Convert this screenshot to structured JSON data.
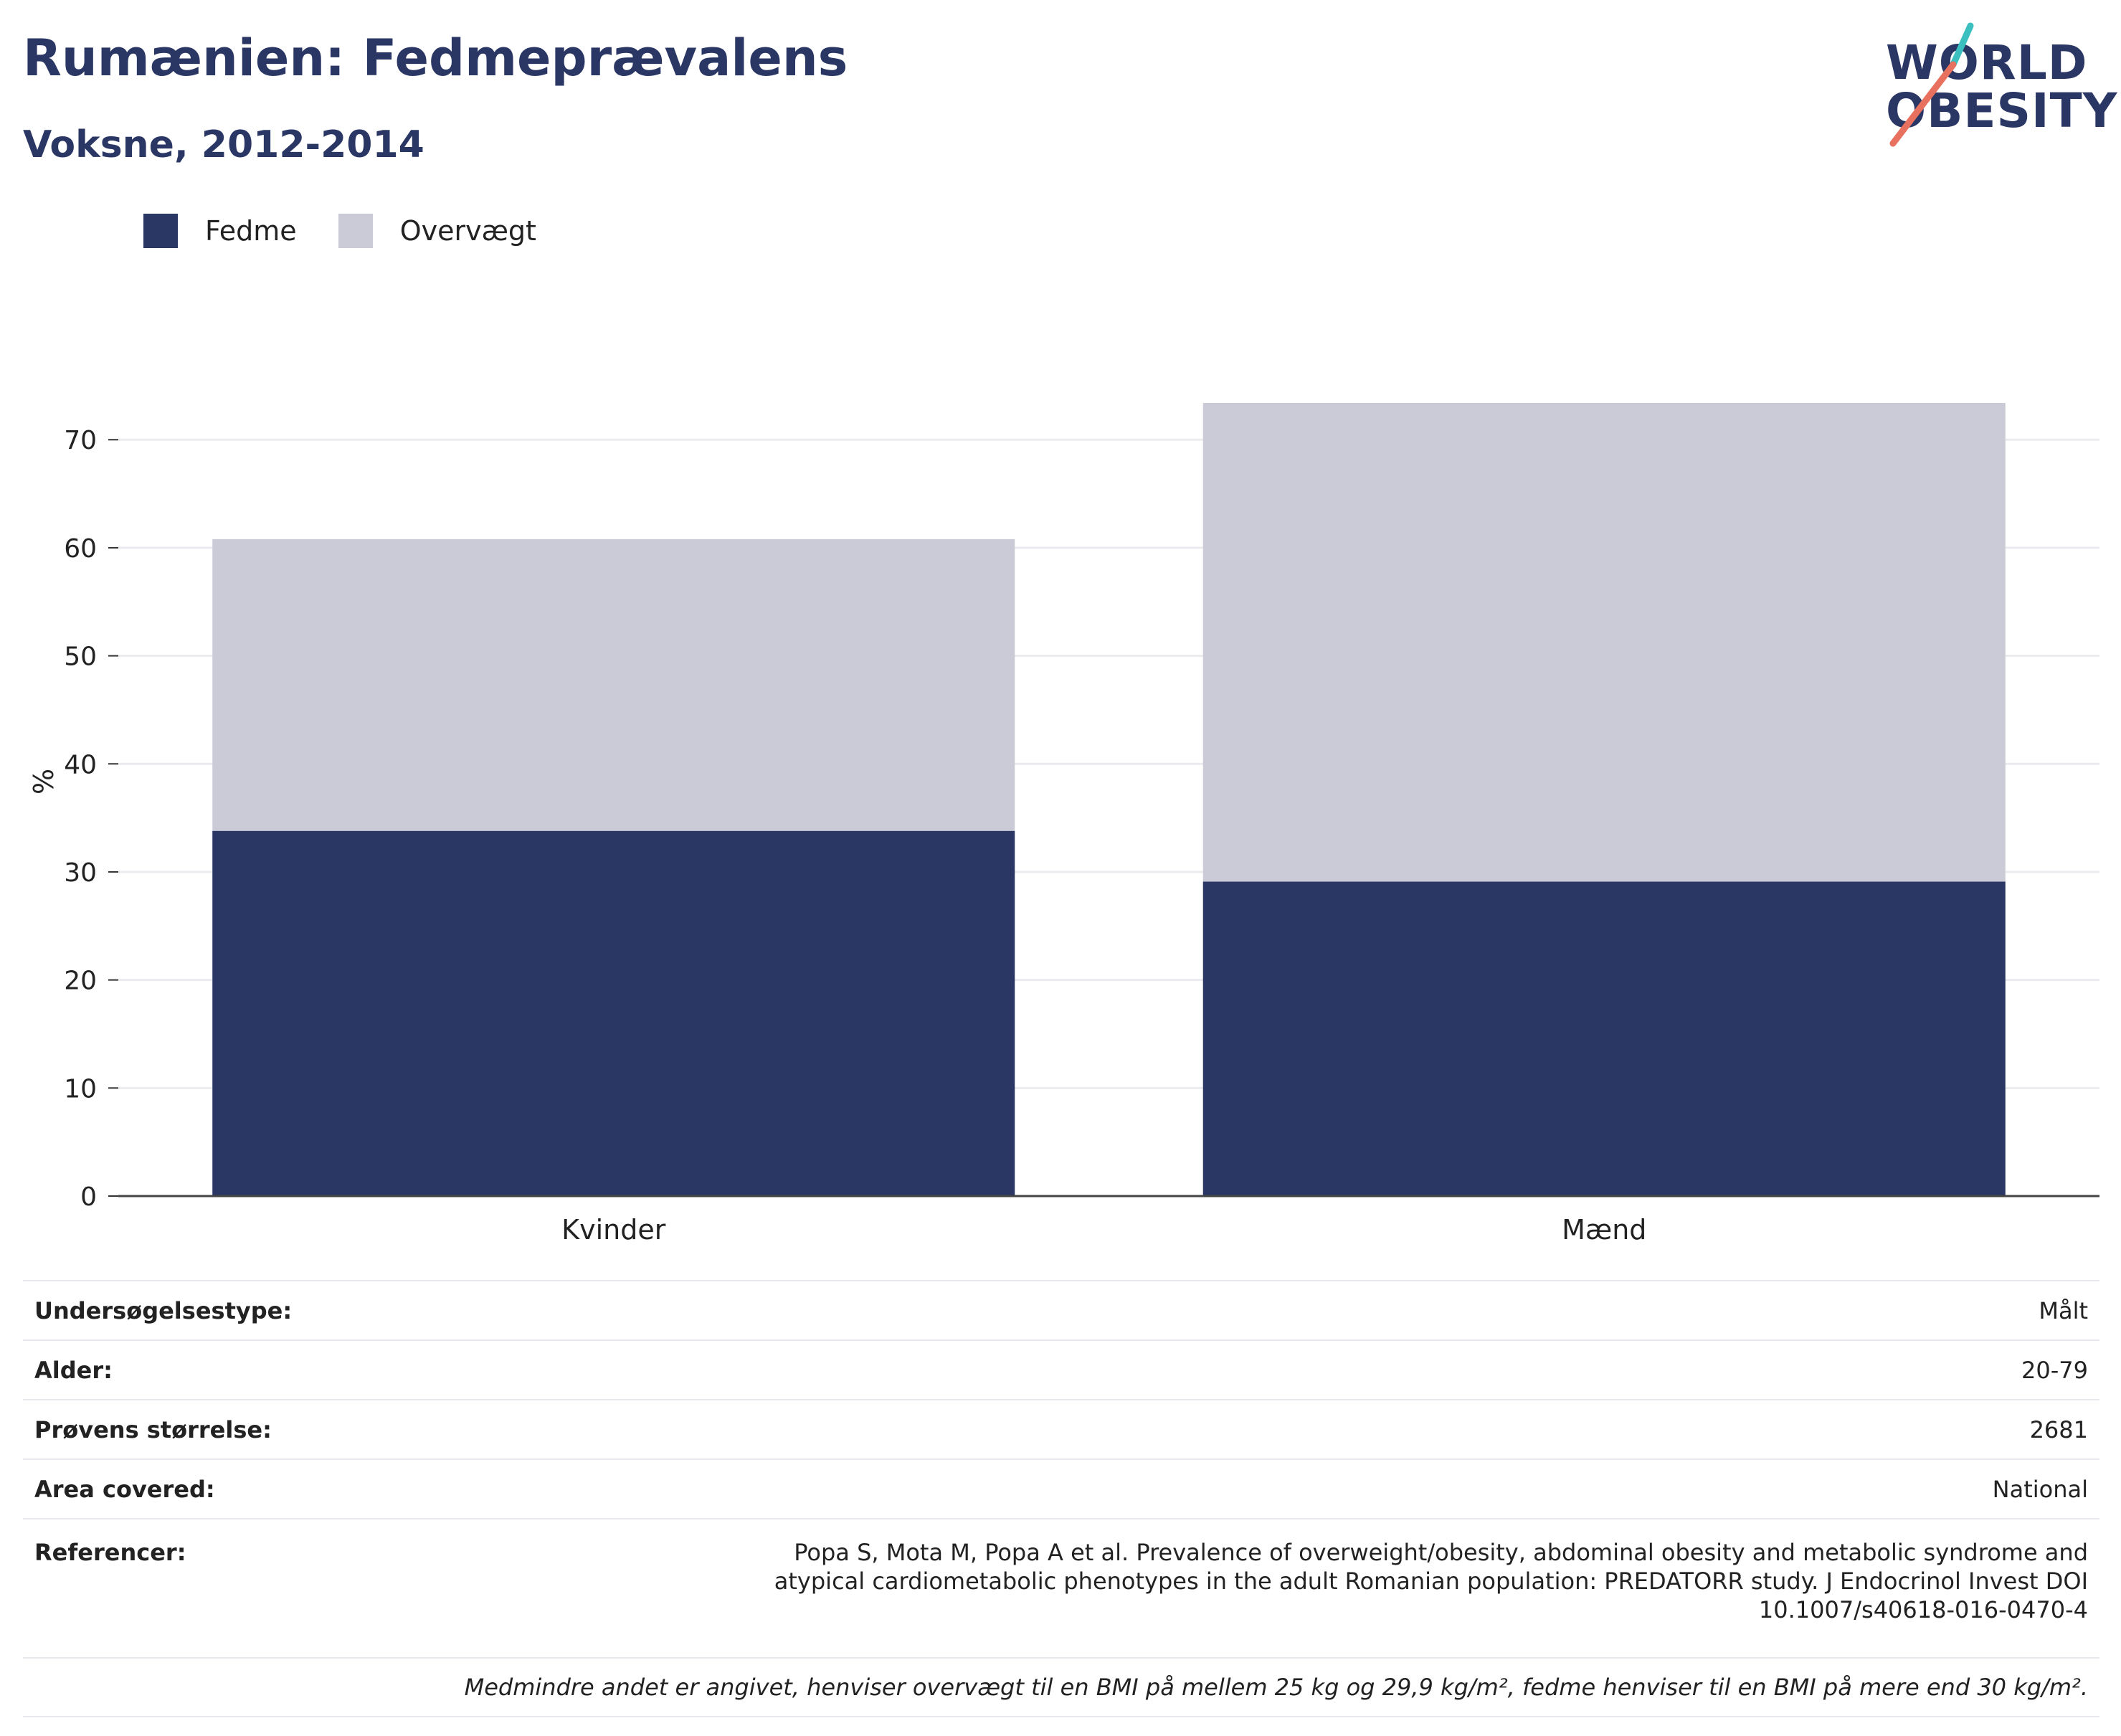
{
  "header": {
    "title": "Rumænien: Fedmeprævalens",
    "subtitle": "Voksne, 2012-2014"
  },
  "logo": {
    "line1": "WORLD",
    "line2": "OBESITY"
  },
  "colors": {
    "fedme": "#2a3663",
    "overvaegt": "#cacbd7",
    "text": "#2a3663",
    "logo_accent_teal": "#3bbfbf",
    "logo_accent_coral": "#e8705e"
  },
  "chart_data": {
    "type": "bar",
    "stacked": true,
    "categories": [
      "Kvinder",
      "Mænd"
    ],
    "series": [
      {
        "name": "Fedme",
        "values": [
          33.8,
          29.1
        ]
      },
      {
        "name": "Overvægt",
        "values": [
          27.0,
          44.3
        ]
      }
    ],
    "ylabel": "%",
    "xlabel": "",
    "ylim": [
      0,
      73.4
    ],
    "yticks": [
      0,
      10,
      20,
      30,
      40,
      50,
      60,
      70
    ],
    "grid": true,
    "legend": "top-left"
  },
  "meta": {
    "rows": [
      {
        "label": "Undersøgelsestype:",
        "value": "Målt"
      },
      {
        "label": "Alder:",
        "value": "20-79"
      },
      {
        "label": "Prøvens størrelse:",
        "value": "2681"
      },
      {
        "label": "Area covered:",
        "value": "National"
      }
    ],
    "references_label": "Referencer:",
    "references": "Popa S, Mota M, Popa A et al. Prevalence of overweight/obesity, abdominal obesity and metabolic syndrome and atypical cardiometabolic phenotypes in the adult Romanian population: PREDATORR study. J Endocrinol Invest DOI 10.1007/s40618-016-0470-4",
    "note": "Medmindre andet er angivet, henviser overvægt til en BMI på mellem 25 kg og 29,9 kg/m², fedme henviser til en BMI på mere end 30 kg/m²."
  }
}
